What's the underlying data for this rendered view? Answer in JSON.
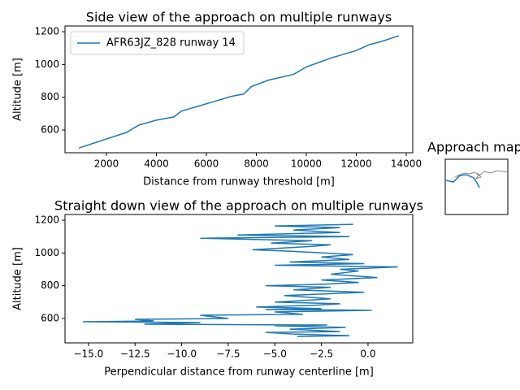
{
  "chart_data": [
    {
      "type": "line",
      "title": "Side view of the approach on multiple runways",
      "x_label": "Distance from runway threshold [m]",
      "y_label": "Altitude [m]",
      "x": [
        900,
        2000,
        2800,
        3300,
        4000,
        4700,
        5000,
        6000,
        7000,
        7500,
        7800,
        8500,
        9500,
        10000,
        11000,
        12000,
        12500,
        13000,
        13700
      ],
      "series": [
        {
          "name": "AFR63JZ_828 runway 14",
          "color": "#1f77b4",
          "values": [
            490,
            545,
            585,
            630,
            660,
            680,
            715,
            760,
            805,
            820,
            865,
            905,
            940,
            985,
            1040,
            1085,
            1120,
            1140,
            1175
          ]
        }
      ],
      "xlim": [
        342,
        14260
      ],
      "xticks": [
        2000,
        4000,
        6000,
        8000,
        10000,
        12000,
        14000
      ],
      "ylim": [
        461,
        1235
      ],
      "yticks": [
        600,
        800,
        1000,
        1200
      ],
      "legend": "upper left"
    },
    {
      "type": "line",
      "title": "Straight down view of the approach on multiple runways",
      "x_label": "Perpendicular distance from runway centerline [m]",
      "y_label": "Altitude [m]",
      "x": [
        -3.8,
        -1.0,
        -4.0,
        -5.5,
        -1.5,
        -4.2,
        -1.2,
        -5.0,
        -2.2,
        -12.0,
        -9.0,
        -15.3,
        -11.5,
        -12.5,
        -7.5,
        -9.0,
        -3.5,
        -5.0,
        0.2,
        -5.5,
        -2.5,
        -6.0,
        -3.0,
        -1.5,
        -5.0,
        -2.0,
        -4.5,
        -0.2,
        -4.0,
        -2.0,
        -5.5,
        -2.2,
        -0.5,
        -2.5,
        0.5,
        -2.0,
        -0.5,
        -1.5,
        1.6,
        -5.0,
        -0.2,
        -4.2,
        -1.0,
        -2.5,
        -0.8,
        -4.0,
        -6.2,
        -3.0,
        -2.0,
        -5.2,
        -3.0,
        -9.0,
        -1.0,
        -7.0,
        -1.5,
        -4.0,
        -1.5,
        -5.0,
        -0.8
      ],
      "series": [
        {
          "color": "#1f77b4",
          "values": [
            490,
            495,
            505,
            515,
            520,
            535,
            545,
            555,
            560,
            565,
            575,
            580,
            585,
            595,
            600,
            620,
            625,
            640,
            650,
            655,
            660,
            670,
            680,
            690,
            700,
            720,
            740,
            760,
            775,
            790,
            800,
            810,
            820,
            835,
            850,
            870,
            890,
            900,
            915,
            925,
            935,
            945,
            960,
            975,
            990,
            1010,
            1020,
            1040,
            1050,
            1060,
            1075,
            1090,
            1100,
            1110,
            1125,
            1140,
            1155,
            1165,
            1175
          ]
        }
      ],
      "xlim": [
        -16.26,
        2.4
      ],
      "xticks": [
        {
          "value": -15,
          "label": "−15.0"
        },
        {
          "value": -12.5,
          "label": "−12.5"
        },
        {
          "value": -10,
          "label": "−10.0"
        },
        {
          "value": -7.5,
          "label": "−7.5"
        },
        {
          "value": -5,
          "label": "−5.0"
        },
        {
          "value": -2.5,
          "label": "−2.5"
        },
        {
          "value": 0,
          "label": "0.0"
        }
      ],
      "ylim": [
        451,
        1235
      ],
      "yticks": [
        600,
        800,
        1000,
        1200
      ]
    }
  ],
  "map": {
    "title": "Approach map"
  }
}
